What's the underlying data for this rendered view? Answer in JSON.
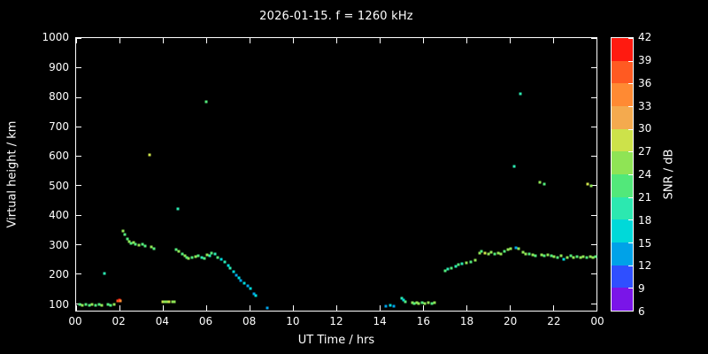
{
  "title": "2026-01-15. f = 1260 kHz",
  "background_color": "#000000",
  "text_color": "#ffffff",
  "chart_data": {
    "type": "scatter",
    "title": "2026-01-15. f = 1260 kHz",
    "xlabel": "UT Time / hrs",
    "ylabel": "Virtual height / km",
    "colorbar_label": "SNR / dB",
    "grid": false,
    "xlim": [
      0,
      24
    ],
    "ylim": [
      75,
      1000
    ],
    "x_tick_values": [
      0,
      2,
      4,
      6,
      8,
      10,
      12,
      14,
      16,
      18,
      20,
      22,
      24
    ],
    "x_tick_labels": [
      "00",
      "02",
      "04",
      "06",
      "08",
      "10",
      "12",
      "14",
      "16",
      "18",
      "20",
      "22",
      "00"
    ],
    "y_tick_values": [
      100,
      200,
      300,
      400,
      500,
      600,
      700,
      800,
      900,
      1000
    ],
    "colorbar_ticks": [
      6,
      9,
      12,
      15,
      18,
      21,
      24,
      27,
      30,
      33,
      36,
      39,
      42
    ],
    "colorbar_colors_bottom_to_top": [
      "#7a15e8",
      "#2f4fff",
      "#00a2e8",
      "#00d9d9",
      "#2ce8b0",
      "#52e87a",
      "#8fe455",
      "#cde24a",
      "#f4aa4e",
      "#ff8a33",
      "#ff5a22",
      "#ff1a10"
    ],
    "points_format": "[ut_hours, virtual_height_km, snr_db]",
    "points": [
      [
        0.15,
        95,
        21
      ],
      [
        0.3,
        93,
        24
      ],
      [
        0.45,
        95,
        21
      ],
      [
        0.6,
        93,
        21
      ],
      [
        0.75,
        95,
        24
      ],
      [
        0.9,
        93,
        21
      ],
      [
        1.05,
        95,
        21
      ],
      [
        1.2,
        93,
        24
      ],
      [
        1.3,
        200,
        18
      ],
      [
        1.45,
        95,
        21
      ],
      [
        1.6,
        93,
        21
      ],
      [
        1.75,
        95,
        24
      ],
      [
        1.9,
        108,
        36
      ],
      [
        2.0,
        110,
        39
      ],
      [
        2.05,
        107,
        33
      ],
      [
        2.15,
        345,
        24
      ],
      [
        2.25,
        332,
        21
      ],
      [
        2.35,
        318,
        21
      ],
      [
        2.45,
        310,
        24
      ],
      [
        2.55,
        302,
        21
      ],
      [
        2.65,
        306,
        24
      ],
      [
        2.75,
        299,
        21
      ],
      [
        2.9,
        296,
        24
      ],
      [
        3.05,
        300,
        21
      ],
      [
        3.2,
        294,
        21
      ],
      [
        3.4,
        605,
        27
      ],
      [
        3.45,
        290,
        24
      ],
      [
        3.6,
        286,
        21
      ],
      [
        4.0,
        106,
        27
      ],
      [
        4.1,
        104,
        24
      ],
      [
        4.2,
        106,
        24
      ],
      [
        4.3,
        104,
        27
      ],
      [
        4.45,
        106,
        24
      ],
      [
        4.55,
        104,
        24
      ],
      [
        4.6,
        282,
        21
      ],
      [
        4.7,
        421,
        18
      ],
      [
        4.75,
        276,
        24
      ],
      [
        4.9,
        268,
        21
      ],
      [
        5.0,
        262,
        24
      ],
      [
        5.1,
        256,
        21
      ],
      [
        5.2,
        252,
        24
      ],
      [
        5.35,
        255,
        21
      ],
      [
        5.5,
        258,
        24
      ],
      [
        5.65,
        262,
        21
      ],
      [
        5.8,
        256,
        18
      ],
      [
        5.9,
        252,
        21
      ],
      [
        6.0,
        785,
        21
      ],
      [
        6.05,
        265,
        24
      ],
      [
        6.15,
        262,
        18
      ],
      [
        6.25,
        270,
        21
      ],
      [
        6.4,
        266,
        18
      ],
      [
        6.55,
        256,
        21
      ],
      [
        6.7,
        250,
        15
      ],
      [
        6.85,
        240,
        18
      ],
      [
        7.0,
        228,
        15
      ],
      [
        7.1,
        218,
        18
      ],
      [
        7.25,
        206,
        15
      ],
      [
        7.4,
        195,
        12
      ],
      [
        7.5,
        186,
        15
      ],
      [
        7.6,
        176,
        12
      ],
      [
        7.75,
        168,
        15
      ],
      [
        7.9,
        158,
        12
      ],
      [
        8.05,
        150,
        15
      ],
      [
        8.2,
        132,
        12
      ],
      [
        8.3,
        127,
        15
      ],
      [
        8.8,
        85,
        12
      ],
      [
        14.3,
        90,
        12
      ],
      [
        14.5,
        92,
        15
      ],
      [
        14.65,
        89,
        12
      ],
      [
        15.0,
        117,
        18
      ],
      [
        15.1,
        112,
        15
      ],
      [
        15.2,
        106,
        21
      ],
      [
        15.5,
        101,
        24
      ],
      [
        15.6,
        99,
        21
      ],
      [
        15.7,
        101,
        24
      ],
      [
        15.8,
        99,
        24
      ],
      [
        15.95,
        101,
        21
      ],
      [
        16.1,
        99,
        24
      ],
      [
        16.25,
        101,
        24
      ],
      [
        16.4,
        99,
        21
      ],
      [
        16.55,
        101,
        24
      ],
      [
        17.0,
        211,
        21
      ],
      [
        17.15,
        216,
        18
      ],
      [
        17.3,
        220,
        21
      ],
      [
        17.5,
        226,
        18
      ],
      [
        17.65,
        230,
        21
      ],
      [
        17.8,
        233,
        18
      ],
      [
        18.0,
        237,
        24
      ],
      [
        18.2,
        241,
        21
      ],
      [
        18.4,
        246,
        24
      ],
      [
        18.6,
        271,
        24
      ],
      [
        18.7,
        276,
        21
      ],
      [
        18.85,
        270,
        27
      ],
      [
        19.0,
        266,
        24
      ],
      [
        19.15,
        272,
        24
      ],
      [
        19.3,
        267,
        21
      ],
      [
        19.45,
        271,
        24
      ],
      [
        19.6,
        268,
        24
      ],
      [
        19.75,
        276,
        21
      ],
      [
        19.9,
        281,
        24
      ],
      [
        20.05,
        284,
        24
      ],
      [
        20.2,
        565,
        18
      ],
      [
        20.3,
        287,
        12
      ],
      [
        20.4,
        284,
        24
      ],
      [
        20.5,
        810,
        18
      ],
      [
        20.6,
        272,
        24
      ],
      [
        20.75,
        266,
        24
      ],
      [
        20.9,
        268,
        21
      ],
      [
        21.05,
        264,
        24
      ],
      [
        21.2,
        261,
        21
      ],
      [
        21.4,
        510,
        24
      ],
      [
        21.45,
        264,
        24
      ],
      [
        21.6,
        505,
        21
      ],
      [
        21.6,
        260,
        21
      ],
      [
        21.75,
        264,
        24
      ],
      [
        21.9,
        261,
        21
      ],
      [
        22.05,
        259,
        24
      ],
      [
        22.2,
        256,
        21
      ],
      [
        22.35,
        261,
        24
      ],
      [
        22.5,
        250,
        15
      ],
      [
        22.65,
        256,
        24
      ],
      [
        22.8,
        261,
        21
      ],
      [
        22.95,
        256,
        24
      ],
      [
        23.1,
        259,
        21
      ],
      [
        23.25,
        255,
        24
      ],
      [
        23.4,
        258,
        24
      ],
      [
        23.55,
        256,
        21
      ],
      [
        23.6,
        505,
        27
      ],
      [
        23.7,
        259,
        24
      ],
      [
        23.75,
        498,
        24
      ],
      [
        23.85,
        255,
        24
      ],
      [
        23.95,
        258,
        21
      ]
    ]
  }
}
